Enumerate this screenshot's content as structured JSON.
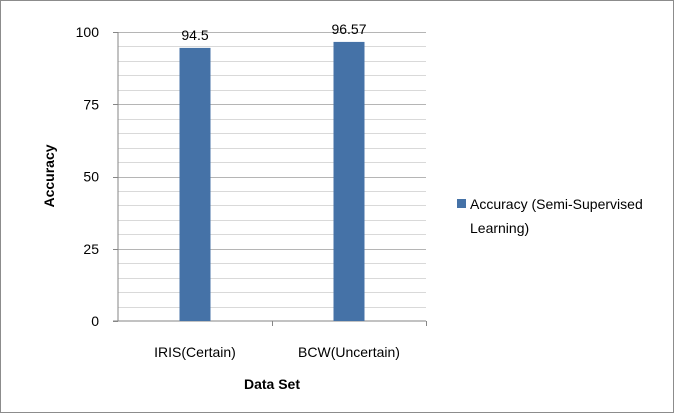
{
  "chart_data": {
    "type": "bar",
    "categories": [
      "IRIS(Certain)",
      "BCW(Uncertain)"
    ],
    "series": [
      {
        "name": "Accuracy (Semi-Supervised Learning)",
        "name_lines": [
          "Accuracy (Semi-Supervised",
          "Learning)"
        ],
        "values": [
          94.5,
          96.57
        ],
        "value_labels": [
          "94.5",
          "96.57"
        ],
        "color": "#4572A7"
      }
    ],
    "title": "",
    "xlabel": "Data Set",
    "ylabel": "Accuracy",
    "ylim": [
      0,
      100
    ],
    "yticks": [
      0,
      25,
      50,
      75,
      100
    ],
    "minor_grid_step": 5,
    "grid": true,
    "legend": "right"
  }
}
